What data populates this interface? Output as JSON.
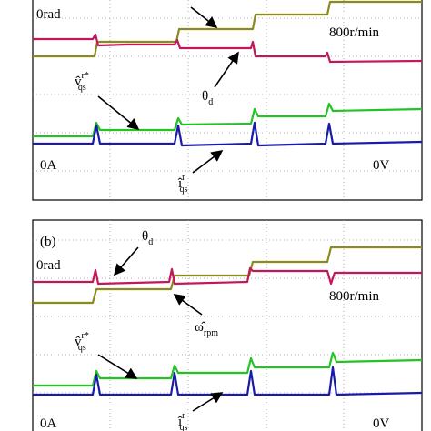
{
  "panel_a": {
    "labels": {
      "zero_angle": "0rad",
      "speed_scale": "800r/min",
      "zero_current": "0A",
      "zero_voltage": "0V"
    },
    "voltage_ref": {
      "base": "v̂",
      "sub": "qs",
      "sup": "r*"
    },
    "theta": {
      "base": "θ",
      "sub": "d"
    },
    "current": {
      "base": "î",
      "sub": "qs",
      "sup": "r"
    }
  },
  "panel_b": {
    "tag": "(b)",
    "labels": {
      "zero_angle": "0rad",
      "speed_scale": "800r/min",
      "zero_current": "0A",
      "zero_voltage": "0V"
    },
    "theta": {
      "base": "θ",
      "sub": "d"
    },
    "voltage_ref": {
      "base": "v̂",
      "sub": "qs",
      "sup": "r*"
    },
    "speed": {
      "base": "ω̂",
      "sub": "rpm"
    },
    "current": {
      "base": "î",
      "sub": "qs",
      "sup": "r"
    }
  }
}
